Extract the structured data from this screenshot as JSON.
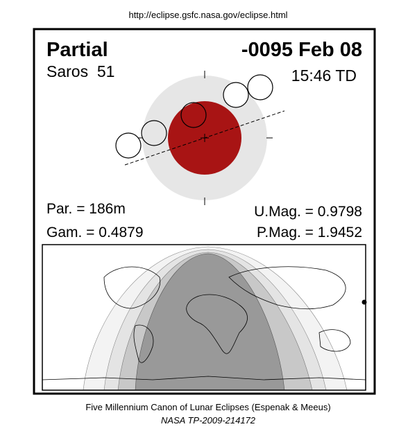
{
  "header": {
    "url": "http://eclipse.gsfc.nasa.gov/eclipse.html"
  },
  "panel": {
    "type": "Partial",
    "date": "-0095 Feb 08",
    "saros": "Saros  51",
    "time": "15:46 TD",
    "parameters": {
      "duration": "Par. = 186m",
      "gamma": "Gam. = 0.4879",
      "umbral_magnitude": "U.Mag. = 0.9798",
      "penumbral_magnitude": "P.Mag. = 1.9452"
    }
  },
  "footer": {
    "title": "Five Millennium Canon of Lunar Eclipses (Espenak & Meeus)",
    "reference": "NASA TP-2009-214172"
  }
}
